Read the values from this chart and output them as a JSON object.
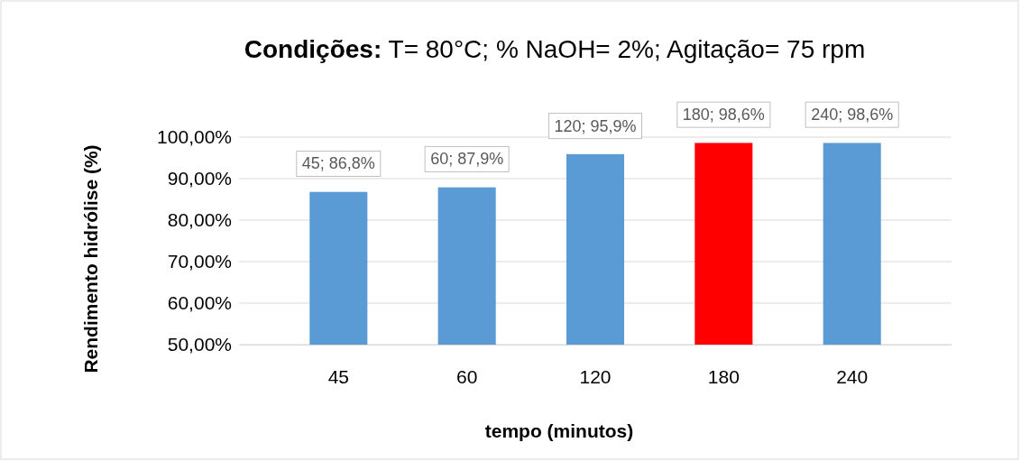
{
  "chart_data": {
    "type": "bar",
    "title": "Condições: T= 80°C; % NaOH= 2%; Agitação= 75 rpm",
    "xlabel": "tempo (minutos)",
    "ylabel": "Rendimento hidrólise (%)",
    "categories": [
      "45",
      "60",
      "120",
      "180",
      "240"
    ],
    "values": [
      86.8,
      87.9,
      95.9,
      98.6,
      98.6
    ],
    "colors": [
      "#5b9bd5",
      "#5b9bd5",
      "#5b9bd5",
      "#ff0000",
      "#5b9bd5"
    ],
    "value_labels": [
      "45; 86,8%",
      "60; 87,9%",
      "120; 95,9%",
      "180; 98,6%",
      "240; 98,6%"
    ],
    "ylim": [
      50,
      100
    ],
    "yticks": [
      {
        "value": 50,
        "label": "50,00%"
      },
      {
        "value": 60,
        "label": "60,00%"
      },
      {
        "value": 70,
        "label": "70,00%"
      },
      {
        "value": 80,
        "label": "80,00%"
      },
      {
        "value": 90,
        "label": "90,00%"
      },
      {
        "value": 100,
        "label": "100,00%"
      }
    ],
    "grid": "y"
  }
}
